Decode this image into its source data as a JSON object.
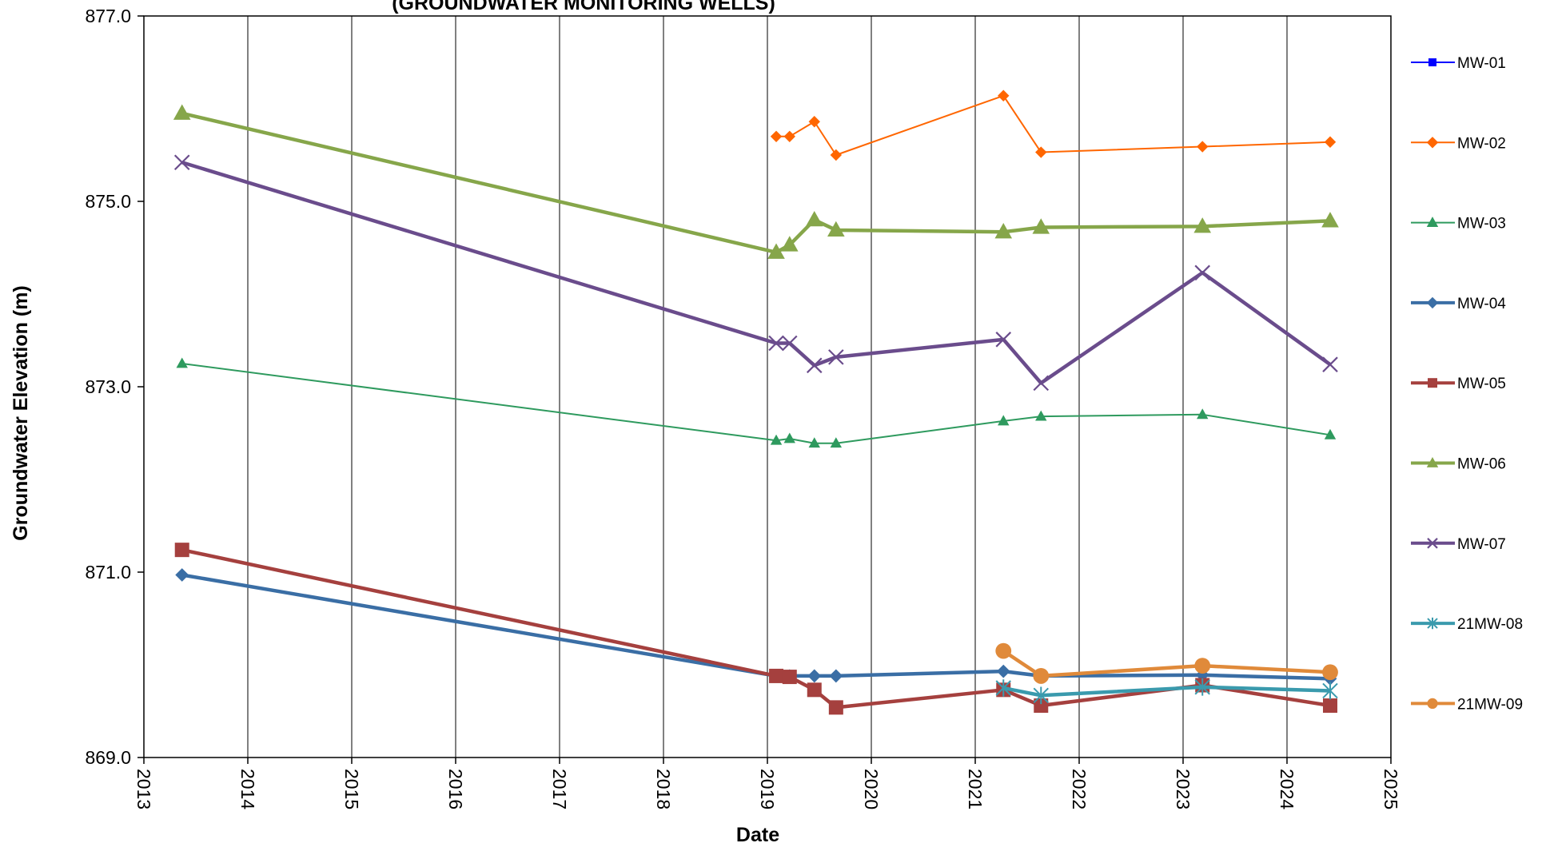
{
  "chart_data": {
    "type": "line",
    "title": "(GROUNDWATER MONITORING WELLS)",
    "xlabel": "Date",
    "ylabel": "Groundwater Elevation (m)",
    "xlim": [
      2013,
      2025
    ],
    "ylim": [
      869.0,
      877.0
    ],
    "x_ticks": [
      "2013",
      "2014",
      "2015",
      "2016",
      "2017",
      "2018",
      "2019",
      "2020",
      "2021",
      "2022",
      "2023",
      "2024",
      "2025"
    ],
    "y_ticks": [
      "869.0",
      "871.0",
      "873.0",
      "875.0",
      "877.0"
    ],
    "grid": "vertical",
    "legend_position": "right",
    "series": [
      {
        "name": "MW-01",
        "color": "#0000ff",
        "marker": "square",
        "points": []
      },
      {
        "name": "MW-02",
        "color": "#ff6600",
        "marker": "diamond",
        "points": [
          {
            "x": "2019-02-01",
            "y": 875.7
          },
          {
            "x": "2019-03-20",
            "y": 875.7
          },
          {
            "x": "2019-06-15",
            "y": 875.86
          },
          {
            "x": "2019-08-30",
            "y": 875.5
          },
          {
            "x": "2021-04-10",
            "y": 876.14
          },
          {
            "x": "2021-08-20",
            "y": 875.53
          },
          {
            "x": "2023-03-10",
            "y": 875.59
          },
          {
            "x": "2024-06-01",
            "y": 875.64
          }
        ]
      },
      {
        "name": "MW-03",
        "color": "#2e9a5e",
        "marker": "triangle",
        "points": [
          {
            "x": "2013-05-15",
            "y": 873.25
          },
          {
            "x": "2019-02-01",
            "y": 872.42
          },
          {
            "x": "2019-03-20",
            "y": 872.44
          },
          {
            "x": "2019-06-15",
            "y": 872.39
          },
          {
            "x": "2019-08-30",
            "y": 872.39
          },
          {
            "x": "2021-04-10",
            "y": 872.63
          },
          {
            "x": "2021-08-20",
            "y": 872.68
          },
          {
            "x": "2023-03-10",
            "y": 872.7
          },
          {
            "x": "2024-06-01",
            "y": 872.48
          }
        ]
      },
      {
        "name": "MW-04",
        "color": "#3a6ea5",
        "marker": "diamond",
        "points": [
          {
            "x": "2013-05-15",
            "y": 870.97
          },
          {
            "x": "2019-02-01",
            "y": 869.88
          },
          {
            "x": "2019-03-20",
            "y": 869.88
          },
          {
            "x": "2019-06-15",
            "y": 869.88
          },
          {
            "x": "2019-08-30",
            "y": 869.88
          },
          {
            "x": "2021-04-10",
            "y": 869.93
          },
          {
            "x": "2021-08-20",
            "y": 869.88
          },
          {
            "x": "2023-03-10",
            "y": 869.89
          },
          {
            "x": "2024-06-01",
            "y": 869.85
          }
        ]
      },
      {
        "name": "MW-05",
        "color": "#a5403e",
        "marker": "square",
        "points": [
          {
            "x": "2013-05-15",
            "y": 871.24
          },
          {
            "x": "2019-02-01",
            "y": 869.88
          },
          {
            "x": "2019-03-20",
            "y": 869.87
          },
          {
            "x": "2019-06-15",
            "y": 869.73
          },
          {
            "x": "2019-08-30",
            "y": 869.54
          },
          {
            "x": "2021-04-10",
            "y": 869.73
          },
          {
            "x": "2021-08-20",
            "y": 869.56
          },
          {
            "x": "2023-03-10",
            "y": 869.78
          },
          {
            "x": "2024-06-01",
            "y": 869.56
          }
        ]
      },
      {
        "name": "MW-06",
        "color": "#86a64a",
        "marker": "triangle",
        "points": [
          {
            "x": "2013-05-15",
            "y": 875.95
          },
          {
            "x": "2019-02-01",
            "y": 874.45
          },
          {
            "x": "2019-03-20",
            "y": 874.53
          },
          {
            "x": "2019-06-15",
            "y": 874.8
          },
          {
            "x": "2019-08-30",
            "y": 874.69
          },
          {
            "x": "2021-04-10",
            "y": 874.67
          },
          {
            "x": "2021-08-20",
            "y": 874.72
          },
          {
            "x": "2023-03-10",
            "y": 874.73
          },
          {
            "x": "2024-06-01",
            "y": 874.79
          }
        ]
      },
      {
        "name": "MW-07",
        "color": "#6a4c8c",
        "marker": "x",
        "points": [
          {
            "x": "2013-05-15",
            "y": 875.42
          },
          {
            "x": "2019-02-01",
            "y": 873.47
          },
          {
            "x": "2019-03-20",
            "y": 873.47
          },
          {
            "x": "2019-06-15",
            "y": 873.23
          },
          {
            "x": "2019-08-30",
            "y": 873.32
          },
          {
            "x": "2021-04-10",
            "y": 873.51
          },
          {
            "x": "2021-08-20",
            "y": 873.04
          },
          {
            "x": "2023-03-10",
            "y": 874.23
          },
          {
            "x": "2024-06-01",
            "y": 873.24
          }
        ]
      },
      {
        "name": "21MW-08",
        "color": "#3a9aad",
        "marker": "star",
        "points": [
          {
            "x": "2021-04-10",
            "y": 869.75
          },
          {
            "x": "2021-08-20",
            "y": 869.67
          },
          {
            "x": "2023-03-10",
            "y": 869.76
          },
          {
            "x": "2024-06-01",
            "y": 869.72
          }
        ]
      },
      {
        "name": "21MW-09",
        "color": "#e08a3a",
        "marker": "circle",
        "points": [
          {
            "x": "2021-04-10",
            "y": 870.15
          },
          {
            "x": "2021-08-20",
            "y": 869.88
          },
          {
            "x": "2023-03-10",
            "y": 869.99
          },
          {
            "x": "2024-06-01",
            "y": 869.92
          }
        ]
      }
    ]
  }
}
